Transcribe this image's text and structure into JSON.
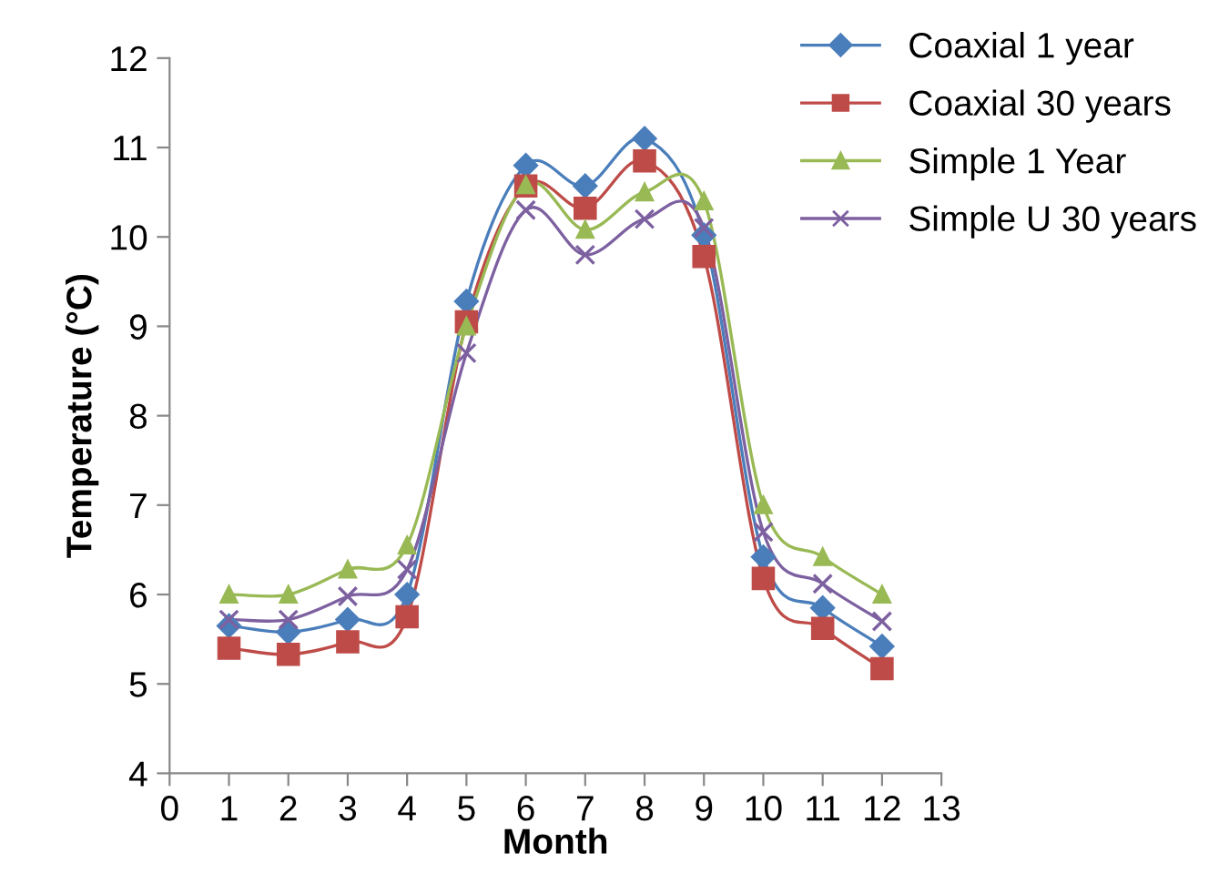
{
  "chart_data": {
    "type": "line",
    "xlabel": "Month",
    "ylabel": "Temperature (°C)",
    "x": [
      1,
      2,
      3,
      4,
      5,
      6,
      7,
      8,
      9,
      10,
      11,
      12
    ],
    "xlim": [
      0,
      13
    ],
    "xticks": [
      0,
      1,
      2,
      3,
      4,
      5,
      6,
      7,
      8,
      9,
      10,
      11,
      12,
      13
    ],
    "ylim": [
      4,
      12
    ],
    "yticks": [
      4,
      5,
      6,
      7,
      8,
      9,
      10,
      11,
      12
    ],
    "grid": false,
    "legend": "top right",
    "line_style": "solid",
    "series": [
      {
        "name": "Coaxial 1 year",
        "color": "#4a7ebb",
        "marker": "diamond",
        "values": [
          5.65,
          5.58,
          5.72,
          6.0,
          9.28,
          10.8,
          10.57,
          11.1,
          10.02,
          6.42,
          5.85,
          5.42
        ]
      },
      {
        "name": "Coaxial 30 years",
        "color": "#be4b48",
        "marker": "square",
        "values": [
          5.4,
          5.33,
          5.47,
          5.75,
          9.05,
          10.57,
          10.32,
          10.85,
          9.78,
          6.18,
          5.62,
          5.17
        ]
      },
      {
        "name": "Simple 1 Year",
        "color": "#98b954",
        "marker": "triangle",
        "values": [
          6.0,
          6.0,
          6.28,
          6.55,
          9.0,
          10.58,
          10.08,
          10.5,
          10.4,
          7.0,
          6.42,
          6.0
        ]
      },
      {
        "name": "Simple U 30 years",
        "color": "#7d60a0",
        "marker": "cross",
        "values": [
          5.72,
          5.72,
          5.98,
          6.28,
          8.7,
          10.3,
          9.8,
          10.2,
          10.1,
          6.7,
          6.12,
          5.7
        ]
      }
    ]
  }
}
